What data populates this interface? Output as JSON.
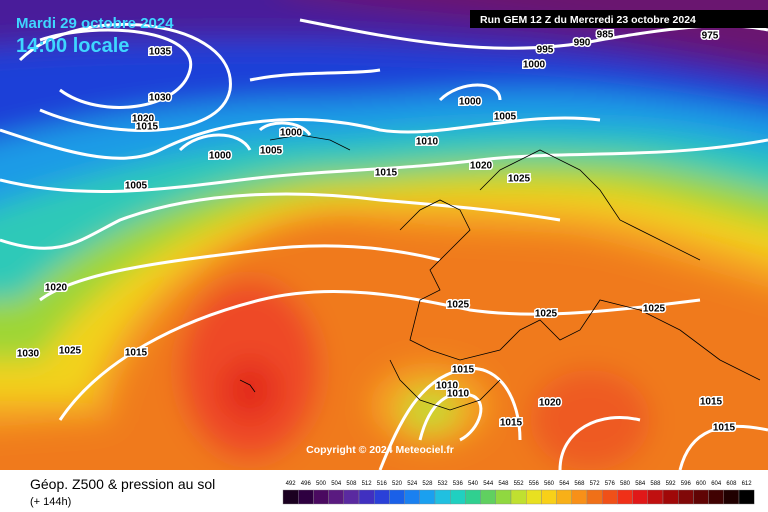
{
  "header": {
    "date": "Mardi 29 octobre 2024",
    "time": "14:00 locale",
    "run": "Run GEM 12 Z du Mercredi 23 octobre 2024"
  },
  "isobar_labels": [
    1035,
    1030,
    1020,
    1015,
    1000,
    1000,
    1005,
    1005,
    1000,
    1005,
    995,
    990,
    985,
    975,
    1000,
    1010,
    1015,
    1020,
    1025,
    1020,
    1030,
    1025,
    1015,
    1025,
    1025,
    1025,
    1015,
    1010,
    1010,
    1020,
    1015,
    1015,
    1015
  ],
  "copyright": "Copyright © 2024 Meteociel.fr",
  "footer": {
    "title": "Géop. Z500 & pression au sol",
    "subtitle": "(+ 144h)"
  },
  "legend": {
    "labels": [
      492,
      496,
      500,
      504,
      508,
      512,
      516,
      520,
      524,
      528,
      532,
      536,
      540,
      544,
      548,
      552,
      556,
      560,
      564,
      568,
      572,
      576,
      580,
      584,
      588,
      592,
      596,
      600,
      604,
      608,
      612
    ]
  }
}
